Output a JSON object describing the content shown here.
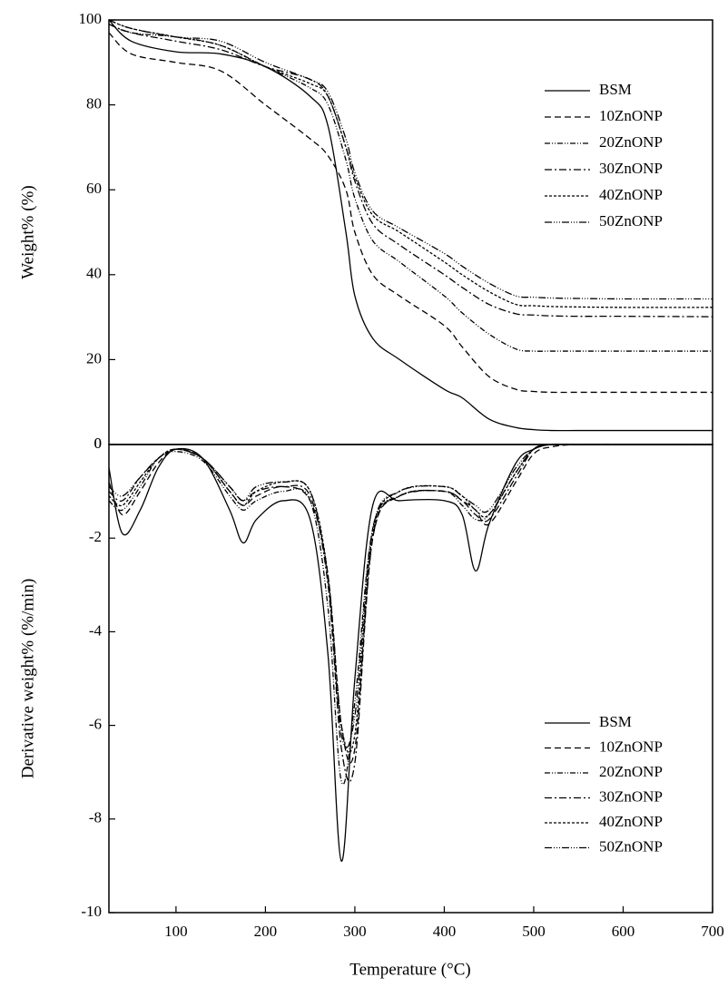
{
  "chart_data": [
    {
      "type": "line",
      "ylabel": "Weight% (%)",
      "xlim": [
        25,
        700
      ],
      "ylim": [
        0,
        100
      ],
      "yticks": [
        0,
        20,
        40,
        60,
        80,
        100
      ],
      "legend": "upper right",
      "x": [
        25,
        50,
        100,
        150,
        200,
        250,
        270,
        290,
        300,
        320,
        350,
        400,
        420,
        450,
        480,
        500,
        520,
        550,
        600,
        700
      ],
      "series": [
        {
          "name": "BSM",
          "color": "#000000",
          "dash": "none",
          "values": [
            100,
            95,
            92.5,
            92,
            89,
            82,
            75,
            50,
            35,
            25,
            20,
            13,
            11,
            6,
            4,
            3.5,
            3.3,
            3.3,
            3.3,
            3.3
          ]
        },
        {
          "name": "10ZnONP",
          "color": "#000000",
          "dash": "7,4",
          "values": [
            97,
            92,
            90,
            88,
            80,
            72,
            68,
            60,
            50,
            40,
            35,
            28,
            23,
            16,
            13,
            12.5,
            12.3,
            12.3,
            12.3,
            12.3
          ]
        },
        {
          "name": "20ZnONP",
          "color": "#000000",
          "dash": "6,2,1,2,1,2",
          "values": [
            99,
            97,
            96,
            94,
            89,
            84,
            80,
            67,
            58,
            48,
            43,
            35,
            31,
            26,
            22.5,
            22,
            22,
            22,
            22,
            22
          ]
        },
        {
          "name": "30ZnONP",
          "color": "#000000",
          "dash": "8,3,2,3",
          "values": [
            99,
            97,
            95,
            93,
            89,
            86,
            82,
            70,
            62,
            52,
            47,
            40,
            37,
            33,
            30.8,
            30.5,
            30.3,
            30.2,
            30.2,
            30.1
          ]
        },
        {
          "name": "40ZnONP",
          "color": "#000000",
          "dash": "3,2",
          "values": [
            100,
            98,
            96,
            94,
            89,
            85,
            82,
            70,
            63,
            54,
            50,
            43,
            40,
            36,
            33,
            32.7,
            32.5,
            32.4,
            32.3,
            32.3
          ]
        },
        {
          "name": "50ZnONP",
          "color": "#000000",
          "dash": "8,2,1,2,1,2,1,2",
          "values": [
            100,
            98,
            96,
            95,
            90,
            86,
            83,
            72,
            64,
            55,
            51,
            45,
            42,
            38,
            35,
            34.7,
            34.5,
            34.4,
            34.3,
            34.3
          ]
        }
      ]
    },
    {
      "type": "line",
      "ylabel": "Derivative weight% (%/min)",
      "xlabel": "Temperature (°C)",
      "xlim": [
        25,
        700
      ],
      "ylim": [
        -10,
        0
      ],
      "xticks": [
        100,
        200,
        300,
        400,
        500,
        600,
        700
      ],
      "yticks": [
        -10,
        -8,
        -6,
        -4,
        -2,
        0
      ],
      "legend": "lower right",
      "x": [
        25,
        40,
        60,
        80,
        100,
        130,
        160,
        175,
        190,
        220,
        250,
        270,
        285,
        300,
        320,
        350,
        400,
        420,
        435,
        450,
        480,
        500,
        520,
        550,
        600,
        700
      ],
      "series": [
        {
          "name": "BSM",
          "color": "#000000",
          "dash": "none",
          "values": [
            -0.5,
            -1.9,
            -1.4,
            -0.5,
            -0.1,
            -0.3,
            -1.4,
            -2.1,
            -1.6,
            -1.2,
            -1.6,
            -4.5,
            -8.9,
            -5,
            -1.3,
            -1.2,
            -1.2,
            -1.5,
            -2.7,
            -1.7,
            -0.4,
            -0.1,
            0,
            0,
            0,
            0
          ]
        },
        {
          "name": "10ZnONP",
          "color": "#000000",
          "dash": "7,4",
          "values": [
            -0.8,
            -1.5,
            -1.0,
            -0.4,
            -0.1,
            -0.3,
            -1.0,
            -1.3,
            -1.1,
            -0.9,
            -1.2,
            -2.8,
            -6,
            -6.5,
            -2,
            -1.1,
            -1.0,
            -1.2,
            -1.4,
            -1.7,
            -0.8,
            -0.2,
            -0.05,
            0,
            0,
            0
          ]
        },
        {
          "name": "20ZnONP",
          "color": "#000000",
          "dash": "6,2,1,2,1,2",
          "values": [
            -1.2,
            -1.4,
            -0.9,
            -0.3,
            -0.15,
            -0.35,
            -1.1,
            -1.4,
            -1.2,
            -1.0,
            -1.2,
            -3.5,
            -7.2,
            -5.5,
            -1.8,
            -1.1,
            -1.0,
            -1.3,
            -1.6,
            -1.5,
            -0.6,
            -0.1,
            0,
            0,
            0,
            0
          ]
        },
        {
          "name": "30ZnONP",
          "color": "#000000",
          "dash": "8,3,2,3",
          "values": [
            -1.0,
            -1.2,
            -0.7,
            -0.3,
            -0.1,
            -0.3,
            -0.9,
            -1.2,
            -1.0,
            -0.9,
            -1.1,
            -3.0,
            -6.5,
            -6.8,
            -2,
            -1.1,
            -1.0,
            -1.2,
            -1.5,
            -1.6,
            -0.7,
            -0.1,
            0,
            0,
            0,
            0
          ]
        },
        {
          "name": "40ZnONP",
          "color": "#000000",
          "dash": "3,2",
          "values": [
            -1.1,
            -1.3,
            -0.8,
            -0.3,
            -0.1,
            -0.3,
            -1.0,
            -1.3,
            -1.0,
            -0.8,
            -1.0,
            -2.8,
            -6.0,
            -6.2,
            -1.9,
            -1.0,
            -0.9,
            -1.1,
            -1.4,
            -1.5,
            -0.6,
            -0.1,
            0,
            0,
            0,
            0
          ]
        },
        {
          "name": "50ZnONP",
          "color": "#000000",
          "dash": "8,2,1,2,1,2,1,2",
          "values": [
            -0.9,
            -1.1,
            -0.7,
            -0.3,
            -0.1,
            -0.3,
            -0.9,
            -1.2,
            -0.9,
            -0.8,
            -1.0,
            -2.9,
            -6.2,
            -5.8,
            -1.8,
            -1.0,
            -0.9,
            -1.1,
            -1.3,
            -1.4,
            -0.5,
            -0.1,
            0,
            0,
            0,
            0
          ]
        }
      ]
    }
  ]
}
